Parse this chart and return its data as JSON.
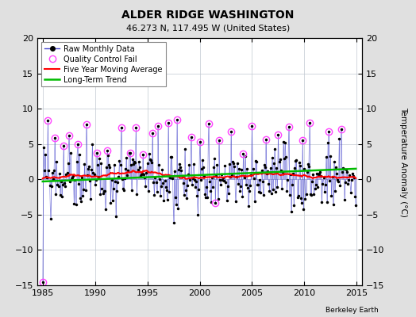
{
  "title": "ALDER RIDGE WASHINGTON",
  "subtitle": "46.273 N, 117.495 W (United States)",
  "credit": "Berkeley Earth",
  "xlim": [
    1984.5,
    2015.5
  ],
  "ylim": [
    -15,
    20
  ],
  "yticks": [
    -15,
    -10,
    -5,
    0,
    5,
    10,
    15,
    20
  ],
  "xticks": [
    1985,
    1990,
    1995,
    2000,
    2005,
    2010,
    2015
  ],
  "ylabel_right": "Temperature Anomaly (°C)",
  "raw_color": "#4444cc",
  "raw_marker_color": "#000000",
  "qc_color": "#ff44ff",
  "moving_avg_color": "#ff0000",
  "trend_color": "#00bb00",
  "bg_color": "#e0e0e0",
  "plot_bg": "#ffffff",
  "legend_entries": [
    "Raw Monthly Data",
    "Quality Control Fail",
    "Five Year Moving Average",
    "Long-Term Trend"
  ]
}
